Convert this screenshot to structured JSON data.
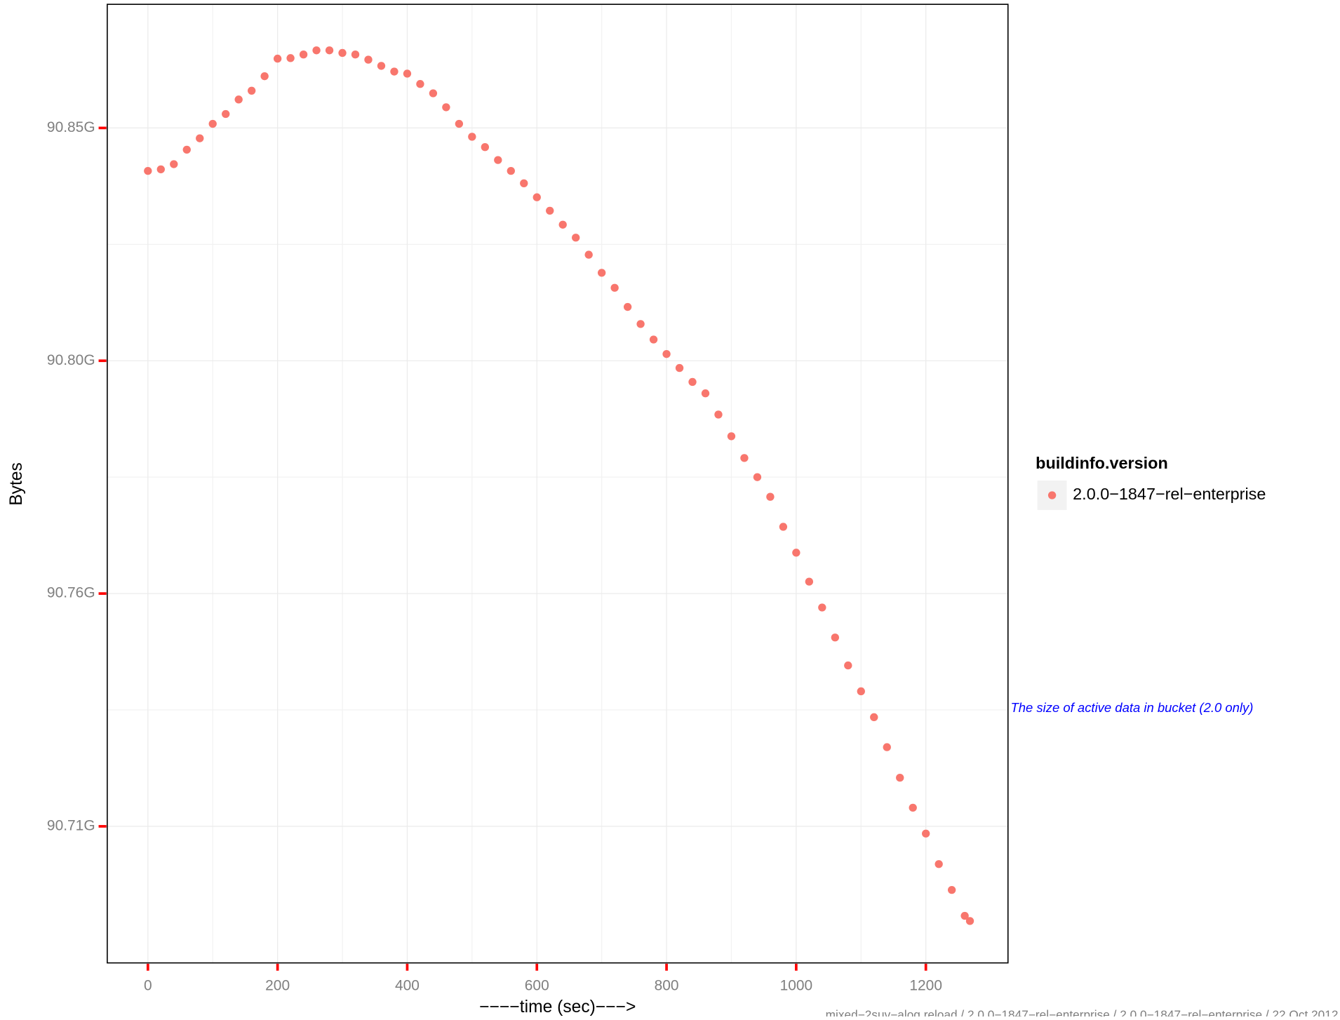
{
  "chart_data": {
    "type": "scatter",
    "x_label": "−−−−time (sec)−−−>",
    "y_label": "Bytes",
    "legend_title": "buildinfo.version",
    "annotation": "The size of active data in bucket (2.0 only)",
    "caption": "mixed−2suv−alog.reload / 2.0.0−1847−rel−enterprise / 2.0.0−1847−rel−enterprise / 22 Oct 2012",
    "xlim": [
      -62.7,
      1326.7
    ],
    "ylim": [
      90.6861,
      90.8714
    ],
    "xticks": [
      0,
      200,
      400,
      600,
      800,
      1000,
      1200
    ],
    "yticks": [
      {
        "value": 90.8475,
        "label": "90.85G"
      },
      {
        "value": 90.8025,
        "label": "90.80G"
      },
      {
        "value": 90.7575,
        "label": "90.76G"
      },
      {
        "value": 90.7125,
        "label": "90.71G"
      }
    ],
    "grid": true,
    "legend_position": "right",
    "series": [
      {
        "name": "2.0.0−1847−rel−enterprise",
        "color": "#F8766D",
        "x": [
          0,
          20,
          40,
          60,
          80,
          100,
          120,
          140,
          160,
          180,
          200,
          220,
          240,
          260,
          280,
          300,
          320,
          340,
          360,
          380,
          400,
          420,
          440,
          460,
          480,
          500,
          520,
          540,
          560,
          580,
          600,
          620,
          640,
          660,
          680,
          700,
          720,
          740,
          760,
          780,
          800,
          820,
          840,
          860,
          880,
          900,
          920,
          940,
          960,
          980,
          1000,
          1020,
          1040,
          1060,
          1080,
          1100,
          1120,
          1140,
          1160,
          1180,
          1200,
          1220,
          1240,
          1260,
          1268
        ],
        "values": [
          90.8392,
          90.8395,
          90.8405,
          90.8433,
          90.8455,
          90.8483,
          90.8502,
          90.853,
          90.8547,
          90.8575,
          90.8609,
          90.861,
          90.8617,
          90.8625,
          90.8625,
          90.862,
          90.8617,
          90.8607,
          90.8595,
          90.8584,
          90.858,
          90.856,
          90.8542,
          90.8515,
          90.8483,
          90.8458,
          90.8438,
          90.8413,
          90.8392,
          90.8368,
          90.8341,
          90.8315,
          90.8288,
          90.8263,
          90.823,
          90.8195,
          90.8166,
          90.8129,
          90.8096,
          90.8066,
          90.8038,
          90.8011,
          90.7984,
          90.7962,
          90.7921,
          90.7879,
          90.7837,
          90.78,
          90.7762,
          90.7704,
          90.7654,
          90.7598,
          90.7548,
          90.749,
          90.7436,
          90.7386,
          90.7336,
          90.7278,
          90.7219,
          90.7161,
          90.7111,
          90.7052,
          90.7002,
          90.6952,
          90.6942
        ]
      }
    ]
  }
}
